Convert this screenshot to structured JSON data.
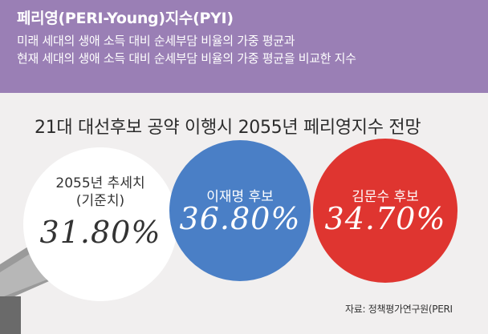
{
  "header": {
    "title": "페리영(PERI-Young)지수(PYI)",
    "description_lines": [
      "미래 세대의 생애 소득 대비 순세부담 비율의 가중 평균과",
      "현재 세대의 생애 소득 대비 순세부담 비율의 가중 평균을 비교한 지수"
    ]
  },
  "chart_data": {
    "type": "bubble",
    "title": "21대 대선후보 공약 이행시 2055년 페리영지수 전망",
    "categories": [
      "2055년 추세치 (기준치)",
      "이재명 후보",
      "김문수 후보"
    ],
    "category_lines": [
      [
        "2055년 추세치",
        "(기준치)"
      ],
      [
        "이재명 후보"
      ],
      [
        "김문수 후보"
      ]
    ],
    "values": [
      31.8,
      36.8,
      34.7
    ],
    "value_labels": [
      "31.80%",
      "36.80%",
      "34.70%"
    ],
    "colors": [
      "#ffffff",
      "#4a7fc6",
      "#df3530"
    ],
    "label_colors": [
      "#333333",
      "#ffffff",
      "#ffffff"
    ],
    "source": "자료: 정책평가연구원(PERI"
  }
}
